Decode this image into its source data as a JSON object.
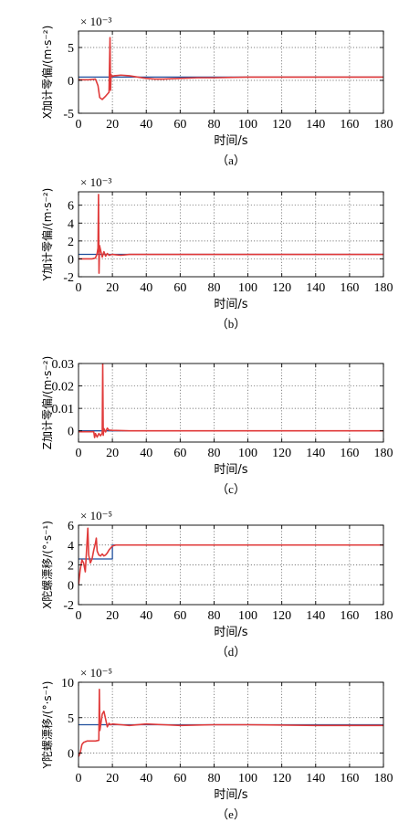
{
  "figure": {
    "background": "#ffffff",
    "grid_color": "#555555",
    "true_color": "#1f4e9c",
    "est_color": "#e03a3a"
  },
  "chart_data": [
    {
      "type": "line",
      "caption": "（a）",
      "xlabel": "时间/s",
      "ylabel": "X加计零偏/(m·s⁻²)",
      "multiplier": "× 10⁻³",
      "xlim": [
        0,
        180
      ],
      "ylim": [
        -5,
        7.5
      ],
      "xticks": [
        0,
        20,
        40,
        60,
        80,
        100,
        120,
        140,
        160,
        180
      ],
      "yticks": [
        -5,
        0,
        5
      ],
      "grid": true,
      "series": [
        {
          "color": "#1f4e9c",
          "x": [
            0,
            180
          ],
          "y": [
            0.5,
            0.5
          ]
        },
        {
          "color": "#e03a3a",
          "x": [
            0,
            6,
            10,
            11.5,
            12.5,
            14,
            16,
            18,
            18.6,
            18.9,
            19.2,
            19.6,
            21,
            25,
            30,
            35,
            40,
            45,
            50,
            60,
            70,
            80,
            100,
            120,
            140,
            160,
            180
          ],
          "y": [
            0.1,
            0.1,
            0.2,
            -0.8,
            -2.6,
            -2.9,
            -2.4,
            -1.8,
            6.5,
            -1.5,
            0.9,
            0.6,
            0.7,
            0.8,
            0.7,
            0.5,
            0.3,
            0.2,
            0.2,
            0.3,
            0.4,
            0.4,
            0.5,
            0.5,
            0.5,
            0.5,
            0.5
          ]
        }
      ]
    },
    {
      "type": "line",
      "caption": "（b）",
      "xlabel": "时间/s",
      "ylabel": "Y加计零偏/(m·s⁻²)",
      "multiplier": "× 10⁻³",
      "xlim": [
        0,
        180
      ],
      "ylim": [
        -2,
        7.5
      ],
      "xticks": [
        0,
        20,
        40,
        60,
        80,
        100,
        120,
        140,
        160,
        180
      ],
      "yticks": [
        -2,
        0,
        2,
        4,
        6
      ],
      "grid": true,
      "series": [
        {
          "color": "#1f4e9c",
          "x": [
            0,
            180
          ],
          "y": [
            0.5,
            0.5
          ]
        },
        {
          "color": "#e03a3a",
          "x": [
            0,
            8,
            10,
            11,
            11.5,
            11.8,
            12.1,
            12.4,
            13,
            14,
            15,
            16,
            17,
            18,
            20,
            25,
            30,
            40,
            60,
            100,
            140,
            180
          ],
          "y": [
            0,
            0,
            0.1,
            0.6,
            1.2,
            7.2,
            -1.6,
            1.5,
            1.0,
            0.2,
            0.8,
            0.3,
            0.6,
            0.4,
            0.5,
            0.4,
            0.5,
            0.5,
            0.5,
            0.5,
            0.5,
            0.5
          ]
        }
      ]
    },
    {
      "type": "line",
      "caption": "（c）",
      "xlabel": "时间/s",
      "ylabel": "Z加计零偏/(m·s⁻²)",
      "multiplier": "",
      "xlim": [
        0,
        180
      ],
      "ylim": [
        -0.005,
        0.03
      ],
      "xticks": [
        0,
        20,
        40,
        60,
        80,
        100,
        120,
        140,
        160,
        180
      ],
      "yticks": [
        0,
        0.01,
        0.02,
        0.03
      ],
      "grid": true,
      "series": [
        {
          "color": "#1f4e9c",
          "x": [
            0,
            180
          ],
          "y": [
            0,
            0
          ]
        },
        {
          "color": "#e03a3a",
          "x": [
            0,
            9,
            9.5,
            10,
            11,
            12,
            13,
            14,
            14.3,
            14.6,
            15,
            16,
            17,
            18,
            20,
            25,
            30,
            60,
            100,
            180
          ],
          "y": [
            -0.0004,
            -0.0004,
            -0.003,
            -0.0012,
            -0.0028,
            -0.0012,
            -0.0022,
            -0.001,
            0.03,
            -0.002,
            0.001,
            -0.0005,
            0.0012,
            0.0003,
            0.0002,
            0.0001,
            0,
            0,
            0,
            0
          ]
        }
      ]
    },
    {
      "type": "line",
      "caption": "（d）",
      "xlabel": "时间/s",
      "ylabel": "X陀螺漂移/(°·s⁻¹)",
      "multiplier": "× 10⁻⁵",
      "xlim": [
        0,
        180
      ],
      "ylim": [
        -2,
        6
      ],
      "xticks": [
        0,
        20,
        40,
        60,
        80,
        100,
        120,
        140,
        160,
        180
      ],
      "yticks": [
        -2,
        0,
        2,
        4,
        6
      ],
      "grid": true,
      "series": [
        {
          "color": "#1f4e9c",
          "x": [
            0,
            20,
            20,
            180
          ],
          "y": [
            2.6,
            2.6,
            4,
            4
          ]
        },
        {
          "color": "#e03a3a",
          "x": [
            0,
            1,
            2,
            3,
            4,
            5,
            5.5,
            6,
            7,
            8,
            9,
            10,
            10.5,
            11,
            12,
            13,
            14,
            15,
            16,
            17,
            18,
            19,
            20,
            22,
            25,
            30,
            40,
            60,
            100,
            180
          ],
          "y": [
            0,
            1.5,
            2.5,
            2.2,
            1.3,
            4.2,
            5.7,
            3.0,
            2.2,
            2.6,
            3.5,
            4.2,
            4.7,
            3.4,
            3.0,
            2.9,
            3.1,
            2.9,
            3.0,
            3.2,
            3.5,
            3.7,
            3.9,
            4.0,
            4.0,
            4.0,
            4.0,
            4.0,
            4.0,
            4.0
          ]
        }
      ]
    },
    {
      "type": "line",
      "caption": "（e）",
      "xlabel": "时间/s",
      "ylabel": "Y陀螺漂移/(°·s⁻¹)",
      "multiplier": "× 10⁻⁵",
      "xlim": [
        0,
        180
      ],
      "ylim": [
        -2,
        10
      ],
      "xticks": [
        0,
        20,
        40,
        60,
        80,
        100,
        120,
        140,
        160,
        180
      ],
      "yticks": [
        0,
        5,
        10
      ],
      "grid": true,
      "series": [
        {
          "color": "#1f4e9c",
          "x": [
            0,
            180
          ],
          "y": [
            4,
            4
          ]
        },
        {
          "color": "#e03a3a",
          "x": [
            0,
            1,
            2,
            3,
            5,
            10,
            12,
            12.3,
            12.6,
            13,
            14,
            15,
            16,
            17,
            18,
            19,
            20,
            25,
            30,
            40,
            50,
            60,
            80,
            100,
            140,
            180
          ],
          "y": [
            -0.5,
            0,
            1.2,
            1.5,
            1.7,
            1.7,
            1.8,
            9.0,
            3.2,
            3.8,
            5.5,
            5.9,
            4.8,
            3.7,
            4.2,
            4.0,
            4.1,
            4.0,
            3.9,
            4.1,
            4.0,
            3.9,
            4.0,
            4.0,
            3.9,
            3.9
          ]
        }
      ]
    }
  ]
}
